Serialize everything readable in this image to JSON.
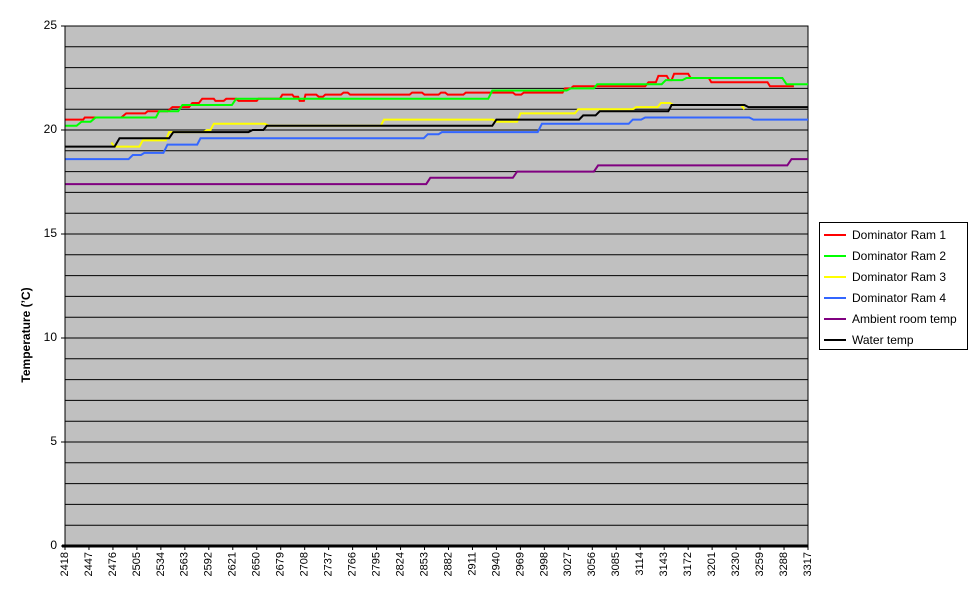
{
  "chart_data": {
    "type": "line",
    "title": "",
    "xlabel": "",
    "ylabel": "Temperature (’C)",
    "ylim": [
      0,
      25
    ],
    "y_ticks": [
      0,
      5,
      10,
      15,
      20,
      25
    ],
    "x_ticks": [
      "2418",
      "2447",
      "2476",
      "2505",
      "2534",
      "2563",
      "2592",
      "2621",
      "2650",
      "2679",
      "2708",
      "2737",
      "2766",
      "2795",
      "2824",
      "2853",
      "2882",
      "2911",
      "2940",
      "2969",
      "2998",
      "3027",
      "3056",
      "3085",
      "3114",
      "3143",
      "3172",
      "3201",
      "3230",
      "3259",
      "3288",
      "3317"
    ],
    "xlim": [
      2418,
      3317
    ],
    "grid": true,
    "plot_background": "#c0c0c0",
    "legend_position": "right",
    "series": [
      {
        "name": "Dominator Ram 1",
        "color": "#ff0000",
        "points": [
          [
            2418,
            20.5
          ],
          [
            2440,
            20.5
          ],
          [
            2442,
            20.6
          ],
          [
            2486,
            20.6
          ],
          [
            2492,
            20.8
          ],
          [
            2515,
            20.8
          ],
          [
            2518,
            20.9
          ],
          [
            2542,
            20.9
          ],
          [
            2548,
            21.1
          ],
          [
            2568,
            21.1
          ],
          [
            2572,
            21.3
          ],
          [
            2580,
            21.3
          ],
          [
            2584,
            21.5
          ],
          [
            2598,
            21.5
          ],
          [
            2600,
            21.4
          ],
          [
            2610,
            21.4
          ],
          [
            2613,
            21.5
          ],
          [
            2625,
            21.5
          ],
          [
            2628,
            21.4
          ],
          [
            2650,
            21.4
          ],
          [
            2652,
            21.5
          ],
          [
            2678,
            21.5
          ],
          [
            2681,
            21.7
          ],
          [
            2693,
            21.7
          ],
          [
            2695,
            21.6
          ],
          [
            2700,
            21.6
          ],
          [
            2702,
            21.4
          ],
          [
            2707,
            21.4
          ],
          [
            2709,
            21.7
          ],
          [
            2722,
            21.7
          ],
          [
            2725,
            21.6
          ],
          [
            2730,
            21.6
          ],
          [
            2733,
            21.7
          ],
          [
            2752,
            21.7
          ],
          [
            2755,
            21.8
          ],
          [
            2760,
            21.8
          ],
          [
            2763,
            21.7
          ],
          [
            2835,
            21.7
          ],
          [
            2838,
            21.8
          ],
          [
            2850,
            21.8
          ],
          [
            2853,
            21.7
          ],
          [
            2870,
            21.7
          ],
          [
            2873,
            21.8
          ],
          [
            2878,
            21.8
          ],
          [
            2881,
            21.7
          ],
          [
            2900,
            21.7
          ],
          [
            2903,
            21.8
          ],
          [
            2918,
            21.8
          ],
          [
            2921,
            21.8
          ],
          [
            2960,
            21.8
          ],
          [
            2963,
            21.7
          ],
          [
            2970,
            21.7
          ],
          [
            2973,
            21.8
          ],
          [
            3020,
            21.8
          ],
          [
            3023,
            22.0
          ],
          [
            3030,
            22.0
          ],
          [
            3033,
            22.1
          ],
          [
            3120,
            22.1
          ],
          [
            3124,
            22.3
          ],
          [
            3133,
            22.3
          ],
          [
            3136,
            22.6
          ],
          [
            3146,
            22.6
          ],
          [
            3149,
            22.4
          ],
          [
            3152,
            22.4
          ],
          [
            3155,
            22.7
          ],
          [
            3172,
            22.7
          ],
          [
            3175,
            22.5
          ],
          [
            3197,
            22.5
          ],
          [
            3200,
            22.3
          ],
          [
            3268,
            22.3
          ],
          [
            3271,
            22.1
          ],
          [
            3300,
            22.1
          ]
        ]
      },
      {
        "name": "Dominator Ram 2",
        "color": "#00ff00",
        "points": [
          [
            2418,
            20.2
          ],
          [
            2432,
            20.2
          ],
          [
            2438,
            20.4
          ],
          [
            2449,
            20.4
          ],
          [
            2455,
            20.6
          ],
          [
            2528,
            20.6
          ],
          [
            2532,
            20.9
          ],
          [
            2555,
            20.9
          ],
          [
            2560,
            21.2
          ],
          [
            2620,
            21.2
          ],
          [
            2625,
            21.5
          ],
          [
            2930,
            21.5
          ],
          [
            2935,
            21.9
          ],
          [
            3025,
            21.9
          ],
          [
            3030,
            22.0
          ],
          [
            3058,
            22.0
          ],
          [
            3062,
            22.2
          ],
          [
            3140,
            22.2
          ],
          [
            3145,
            22.4
          ],
          [
            3165,
            22.4
          ],
          [
            3170,
            22.5
          ],
          [
            3286,
            22.5
          ],
          [
            3291,
            22.2
          ],
          [
            3317,
            22.2
          ]
        ]
      },
      {
        "name": "Dominator Ram 3",
        "color": "#ffff00",
        "points": [
          [
            2474,
            19.4
          ],
          [
            2478,
            19.2
          ],
          [
            2508,
            19.2
          ],
          [
            2512,
            19.5
          ],
          [
            2540,
            19.5
          ],
          [
            2544,
            19.9
          ],
          [
            2585,
            19.9
          ],
          [
            2590,
            20.0
          ],
          [
            2594,
            20.0
          ],
          [
            2598,
            20.3
          ],
          [
            2660,
            20.3
          ],
          [
            2665,
            20.2
          ],
          [
            2800,
            20.2
          ],
          [
            2804,
            20.5
          ],
          [
            2936,
            20.5
          ],
          [
            2940,
            20.4
          ],
          [
            2965,
            20.4
          ],
          [
            2969,
            20.8
          ],
          [
            3035,
            20.8
          ],
          [
            3039,
            21.0
          ],
          [
            3105,
            21.0
          ],
          [
            3109,
            21.1
          ],
          [
            3135,
            21.1
          ],
          [
            3139,
            21.3
          ],
          [
            3150,
            21.3
          ],
          [
            3154,
            21.2
          ],
          [
            3236,
            21.2
          ],
          [
            3240,
            21.0
          ]
        ]
      },
      {
        "name": "Dominator Ram 4",
        "color": "#3366ff",
        "points": [
          [
            2418,
            18.6
          ],
          [
            2495,
            18.6
          ],
          [
            2500,
            18.8
          ],
          [
            2510,
            18.8
          ],
          [
            2514,
            18.9
          ],
          [
            2537,
            18.9
          ],
          [
            2542,
            19.3
          ],
          [
            2578,
            19.3
          ],
          [
            2582,
            19.6
          ],
          [
            2852,
            19.6
          ],
          [
            2857,
            19.8
          ],
          [
            2870,
            19.8
          ],
          [
            2874,
            19.9
          ],
          [
            2990,
            19.9
          ],
          [
            2995,
            20.3
          ],
          [
            3100,
            20.3
          ],
          [
            3105,
            20.5
          ],
          [
            3115,
            20.5
          ],
          [
            3120,
            20.6
          ],
          [
            3246,
            20.6
          ],
          [
            3251,
            20.5
          ],
          [
            3317,
            20.5
          ]
        ]
      },
      {
        "name": "Ambient room temp",
        "color": "#800080",
        "points": [
          [
            2418,
            17.4
          ],
          [
            2855,
            17.4
          ],
          [
            2860,
            17.7
          ],
          [
            2960,
            17.7
          ],
          [
            2965,
            18.0
          ],
          [
            3058,
            18.0
          ],
          [
            3063,
            18.3
          ],
          [
            3292,
            18.3
          ],
          [
            3297,
            18.6
          ],
          [
            3317,
            18.6
          ]
        ]
      },
      {
        "name": "Water temp",
        "color": "#000000",
        "points": [
          [
            2418,
            19.2
          ],
          [
            2478,
            19.2
          ],
          [
            2484,
            19.6
          ],
          [
            2544,
            19.6
          ],
          [
            2549,
            19.9
          ],
          [
            2640,
            19.9
          ],
          [
            2645,
            20.0
          ],
          [
            2658,
            20.0
          ],
          [
            2662,
            20.2
          ],
          [
            2935,
            20.2
          ],
          [
            2940,
            20.5
          ],
          [
            3040,
            20.5
          ],
          [
            3045,
            20.7
          ],
          [
            3060,
            20.7
          ],
          [
            3065,
            20.9
          ],
          [
            3148,
            20.9
          ],
          [
            3152,
            21.2
          ],
          [
            3240,
            21.2
          ],
          [
            3245,
            21.1
          ],
          [
            3317,
            21.1
          ]
        ]
      }
    ]
  }
}
